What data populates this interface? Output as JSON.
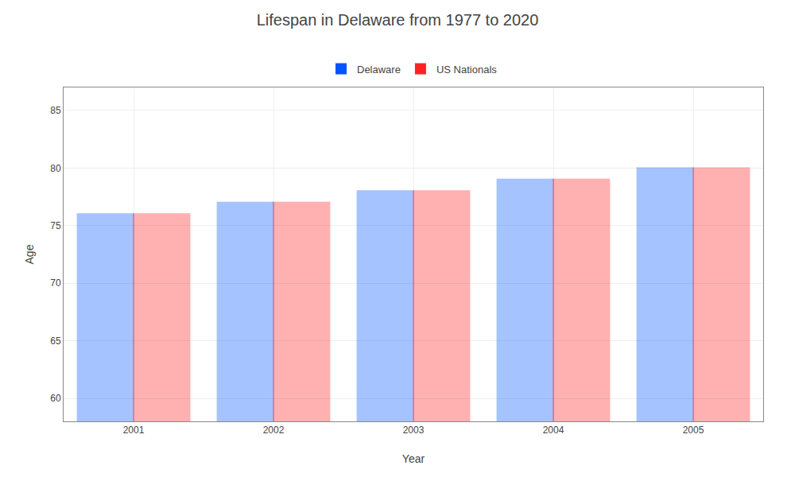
{
  "chart_data": {
    "type": "bar",
    "title": "Lifespan in Delaware from 1977 to 2020",
    "x_label": "Year",
    "y_label": "Age",
    "categories": [
      "2001",
      "2002",
      "2003",
      "2004",
      "2005"
    ],
    "series": [
      {
        "name": "Delaware",
        "color": "#0055ff",
        "values": [
          76,
          77,
          78,
          79,
          80
        ]
      },
      {
        "name": "US Nationals",
        "color": "#ff2222",
        "values": [
          76,
          77,
          78,
          79,
          80
        ]
      }
    ],
    "ylim": [
      58,
      87
    ],
    "yticks": [
      60,
      65,
      70,
      75,
      80,
      85
    ],
    "grid": true,
    "legend": "top"
  }
}
